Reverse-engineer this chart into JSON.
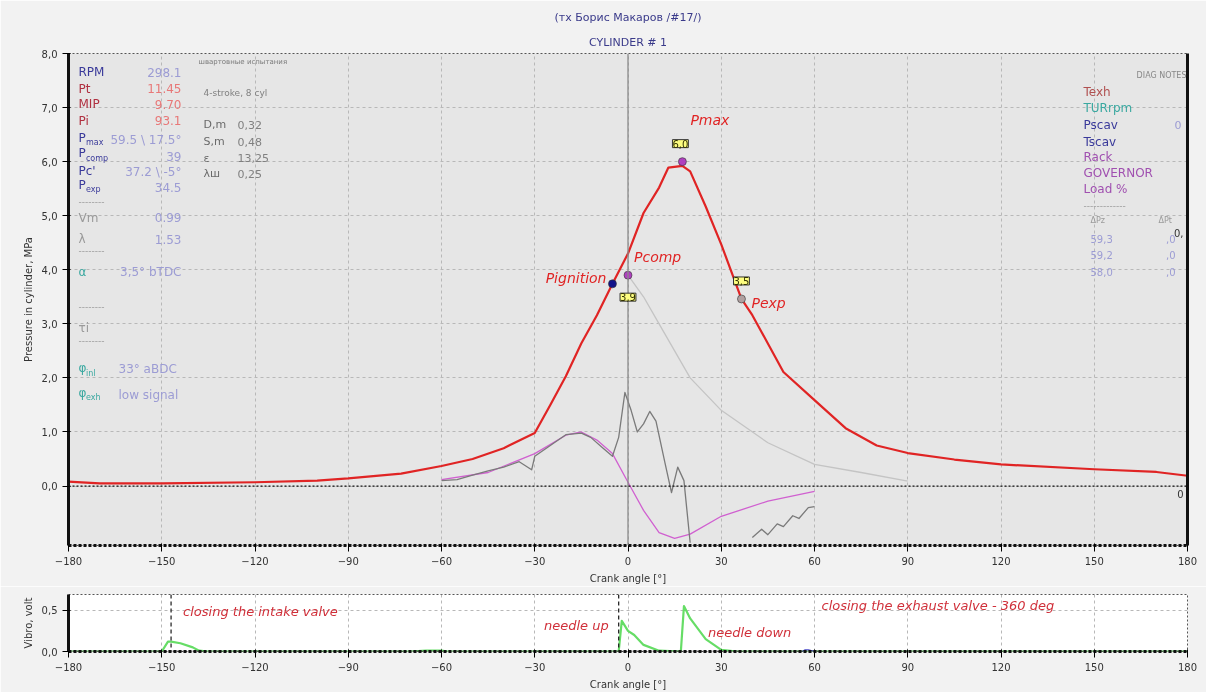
{
  "chart_data": [
    {
      "type": "line",
      "title": "(тх Борис Макаров /#17/)",
      "subtitle": "CYLINDER # 1",
      "xlabel": "Crank angle [°]",
      "ylabel": "Pressure in cylinder, MPa",
      "xlim": [
        -180,
        180
      ],
      "xticks": [
        -180,
        -150,
        -120,
        -90,
        -60,
        -30,
        0,
        30,
        60,
        90,
        120,
        150,
        180
      ],
      "ylim": [
        -1.1,
        8.0
      ],
      "yticks": [
        {
          "value": 0,
          "label": "0,0"
        },
        {
          "value": 1,
          "label": "1,0"
        },
        {
          "value": 2,
          "label": "2,0"
        },
        {
          "value": 3,
          "label": "3,0"
        },
        {
          "value": 4,
          "label": "4,0"
        },
        {
          "value": 5,
          "label": "5,0"
        },
        {
          "value": 6,
          "label": "6,0"
        },
        {
          "value": 7,
          "label": "7,0"
        },
        {
          "value": 8,
          "label": "8,0"
        }
      ],
      "grid": true,
      "ref_lines": [
        {
          "axis": "x",
          "value": 0,
          "color": "#8a8a8a"
        },
        {
          "axis": "y",
          "value": 0,
          "color": "#111111",
          "line_style": "dotted"
        }
      ],
      "series": [
        {
          "color": "#e02424",
          "x": [
            -180,
            -170,
            -150,
            -120,
            -100,
            -90,
            -73,
            -60,
            -50,
            -40,
            -30,
            -25,
            -20,
            -15,
            -10,
            -5,
            0,
            5,
            10,
            13,
            17.5,
            20,
            25,
            30,
            36.5,
            40,
            50,
            60,
            70,
            80,
            90,
            105,
            120,
            150,
            170,
            180
          ],
          "values": [
            0.08,
            0.05,
            0.05,
            0.07,
            0.1,
            0.14,
            0.23,
            0.37,
            0.5,
            0.7,
            0.98,
            1.5,
            2.03,
            2.64,
            3.16,
            3.74,
            4.3,
            5.05,
            5.52,
            5.89,
            5.92,
            5.82,
            5.17,
            4.47,
            3.46,
            3.16,
            2.11,
            1.59,
            1.07,
            0.75,
            0.61,
            0.49,
            0.4,
            0.31,
            0.26,
            0.19
          ]
        },
        {
          "color": "#c4c4c4",
          "x": [
            0,
            5,
            10,
            20,
            30,
            45,
            60,
            75,
            90
          ],
          "values": [
            3.9,
            3.5,
            3.0,
            2.0,
            1.4,
            0.8,
            0.4,
            0.25,
            0.09
          ]
        },
        {
          "color": "#d060d0",
          "x": [
            -60,
            -45,
            -30,
            -20,
            -15,
            -10,
            -5,
            0,
            5,
            10,
            15,
            20,
            30,
            45,
            60
          ],
          "values": [
            0.12,
            0.25,
            0.6,
            0.94,
            1.0,
            0.85,
            0.6,
            0.07,
            -0.45,
            -0.86,
            -0.97,
            -0.89,
            -0.56,
            -0.28,
            -0.1
          ]
        },
        {
          "color": "#7a7a7a",
          "x": [
            -60,
            -55,
            -50,
            -45,
            -40,
            -35,
            -31,
            -30,
            -25,
            -20,
            -15,
            -12,
            -8,
            -5,
            -3,
            -1,
            1,
            3,
            5,
            7,
            9,
            12,
            14,
            16,
            18,
            20,
            30,
            40,
            43,
            45,
            48,
            50,
            53,
            55,
            58,
            60
          ],
          "values": [
            0.1,
            0.12,
            0.2,
            0.28,
            0.35,
            0.45,
            0.3,
            0.55,
            0.75,
            0.95,
            0.98,
            0.9,
            0.7,
            0.55,
            0.9,
            1.73,
            1.4,
            1.0,
            1.15,
            1.38,
            1.2,
            0.4,
            -0.12,
            0.35,
            0.1,
            -1.05,
            null,
            -0.95,
            -0.8,
            -0.9,
            -0.7,
            -0.75,
            -0.55,
            -0.6,
            -0.4,
            -0.38
          ]
        },
        {
          "type": "scatter",
          "marker": "circle",
          "x": [
            -5,
            0,
            17.5,
            36.5
          ],
          "values": [
            3.74,
            3.9,
            6.0,
            3.46
          ],
          "colors": [
            "#12128a",
            "#b040c0",
            "#b040c0",
            "#b0a0a0"
          ],
          "value_labels": [
            null,
            "3,9",
            "6,0",
            "3,5"
          ]
        }
      ],
      "annotations": [
        "швартовные испытания",
        "DIAG NOTES",
        "RPM",
        "298.1",
        "Pt",
        "11.45",
        "MIP",
        "9.70",
        "Pi",
        "93.1",
        "P$_{max}$",
        "59.5 \\ 17.5°",
        "P$_{comp}$",
        "39",
        "Pc'",
        "37.2 \\ -5°",
        "P$_{exp}$",
        "34.5",
        "--------",
        "Vm",
        "0.99",
        "λ",
        "1.53",
        "--------",
        "α",
        "3,5° bTDC",
        "--------",
        "τi",
        "--------",
        "φ$_{inl}$",
        "33° aBDC",
        "φ$_{exh}$",
        "low signal",
        "4-stroke, 8 cyl",
        "D,m",
        "0,32",
        "S,m",
        "0,48",
        "ε",
        "13,25",
        "λш",
        "0,25",
        "Texh",
        "TURrpm",
        "Pscav",
        "0",
        "Tscav",
        "Rack",
        "GOVERNOR",
        "Load %",
        "-------------",
        "ΔPz",
        "ΔPt",
        "59,3",
        ",0",
        "59,2",
        ",0",
        "58,0",
        ",0",
        "0,",
        "0",
        {
          "text": "Pignition",
          "x": -5,
          "y": 3.74
        },
        {
          "text": "Pcomp",
          "x": 0,
          "y": 3.9
        },
        {
          "text": "Pmax",
          "x": 17.5,
          "y": 6.0
        },
        {
          "text": "Pexp",
          "x": 36.5,
          "y": 3.46
        }
      ]
    },
    {
      "type": "line",
      "xlabel": "Crank angle [°]",
      "ylabel": "Vibro, volt",
      "xlim": [
        -180,
        180
      ],
      "xticks": [
        -180,
        -150,
        -120,
        -90,
        -60,
        -30,
        0,
        30,
        60,
        90,
        120,
        150,
        180
      ],
      "ylim": [
        0,
        0.69
      ],
      "yticks": [
        {
          "value": 0,
          "label": "0,0"
        },
        {
          "value": 0.5,
          "label": "0,5"
        }
      ],
      "grid": true,
      "ref_lines": [
        {
          "axis": "x",
          "value": -147,
          "color": "#2a2a2a",
          "line_style": "dashed"
        },
        {
          "axis": "x",
          "value": -3,
          "color": "#2a2a2a",
          "line_style": "dashed"
        },
        {
          "axis": "y",
          "value": 0,
          "color": "#111111",
          "line_style": "dotted"
        }
      ],
      "series": [
        {
          "color": "#66dd66",
          "x": [
            -180,
            -150,
            -148,
            -147,
            -144,
            -140,
            -138,
            -135,
            -70,
            -65,
            -62,
            -60,
            -58,
            -4,
            -3,
            -2,
            0,
            2,
            5,
            10,
            17,
            18,
            20,
            25,
            30,
            35,
            180
          ],
          "values": [
            0,
            0,
            0.12,
            0.12,
            0.1,
            0.05,
            0.01,
            0,
            0,
            0.01,
            0.01,
            0.01,
            0,
            0,
            0,
            0.37,
            0.25,
            0.2,
            0.08,
            0.01,
            0,
            0.55,
            0.4,
            0.15,
            0.02,
            0,
            0
          ]
        },
        {
          "color": "#4848c8",
          "x": [
            56,
            57,
            58,
            59,
            60
          ],
          "values": [
            0,
            0.02,
            0.02,
            0.01,
            0
          ]
        }
      ],
      "annotations": [
        {
          "text": "closing the intake valve",
          "x": -147,
          "y": 0.12
        },
        {
          "text": "needle up",
          "x": -3,
          "y": 0
        },
        {
          "text": "needle down",
          "x": 18,
          "y": 0.55
        },
        "closing the exhaust valve - 360 deg"
      ]
    }
  ]
}
